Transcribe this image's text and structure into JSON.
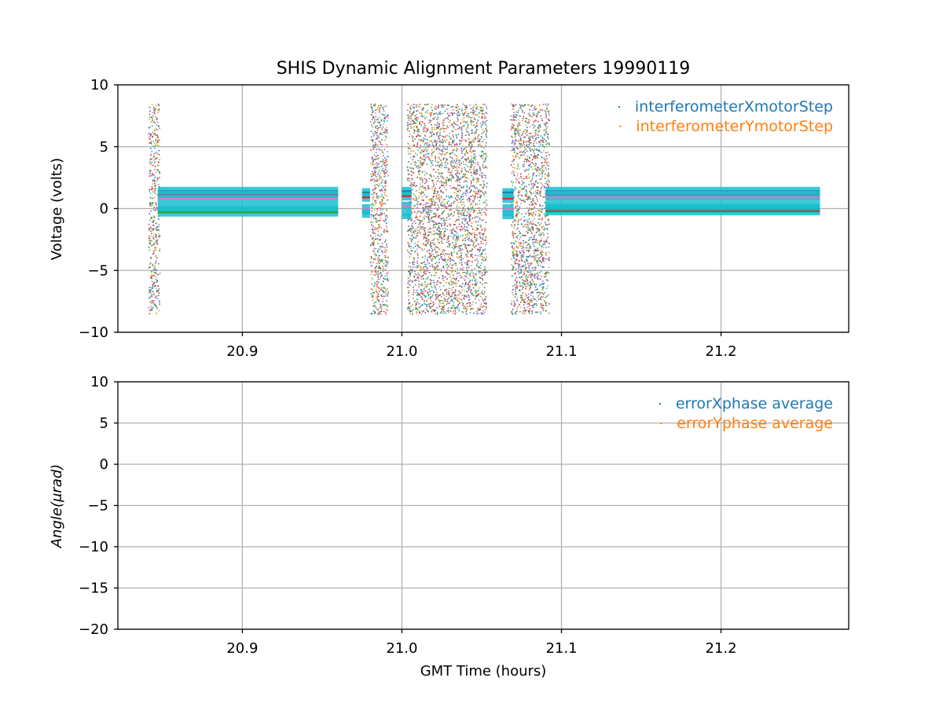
{
  "figure": {
    "title": "SHIS Dynamic Alignment Parameters 19990119",
    "xlabel": "GMT Time (hours)"
  },
  "chart_data": [
    {
      "type": "scatter",
      "ylabel": "Voltage (volts)",
      "xlim": [
        20.822,
        21.28
      ],
      "ylim": [
        -10,
        10
      ],
      "xticks": [
        20.9,
        21.0,
        21.1,
        21.2
      ],
      "xtick_labels": [
        "20.9",
        "21.0",
        "21.1",
        "21.2"
      ],
      "yticks": [
        -10,
        -5,
        0,
        5,
        10
      ],
      "ytick_labels": [
        "−10",
        "−5",
        "0",
        "5",
        "10"
      ],
      "grid": true,
      "legend_position": "top-right",
      "series": [
        {
          "name": "interferometerXmotorStep",
          "color": "#1f77b4"
        },
        {
          "name": "interferometerYmotorStep",
          "color": "#ff7f0e"
        }
      ],
      "palette": [
        "#1f77b4",
        "#ff7f0e",
        "#2ca02c",
        "#d62728",
        "#9467bd",
        "#8c564b",
        "#e377c2",
        "#7f7f7f",
        "#bcbd22",
        "#17becf"
      ],
      "scatter_segments": [
        {
          "x_start": 20.841,
          "x_end": 20.848,
          "y_min": -8.5,
          "y_max": 8.5
        },
        {
          "x_start": 20.98,
          "x_end": 20.991,
          "y_min": -8.5,
          "y_max": 8.5
        },
        {
          "x_start": 21.003,
          "x_end": 21.053,
          "y_min": -8.5,
          "y_max": 8.5
        },
        {
          "x_start": 21.068,
          "x_end": 21.092,
          "y_min": -8.5,
          "y_max": 8.5
        }
      ],
      "steady_segments": [
        {
          "x_start": 20.847,
          "x_end": 20.96,
          "levels": [
            1.4,
            1.1,
            0.8,
            0.1,
            -0.3
          ]
        },
        {
          "x_start": 20.975,
          "x_end": 20.98,
          "levels": [
            1.3,
            0.9,
            0.0,
            -0.4
          ]
        },
        {
          "x_start": 21.0,
          "x_end": 21.006,
          "levels": [
            1.4,
            1.0,
            0.2,
            -0.5
          ]
        },
        {
          "x_start": 21.063,
          "x_end": 21.07,
          "levels": [
            1.3,
            0.8,
            0.0,
            -0.5
          ]
        },
        {
          "x_start": 21.09,
          "x_end": 21.262,
          "levels": [
            1.4,
            1.1,
            0.9,
            0.2,
            0.0,
            -0.2
          ]
        }
      ]
    },
    {
      "type": "scatter",
      "ylabel": "Angle(μrad)",
      "xlim": [
        20.822,
        21.28
      ],
      "ylim": [
        -20,
        10
      ],
      "xticks": [
        20.9,
        21.0,
        21.1,
        21.2
      ],
      "xtick_labels": [
        "20.9",
        "21.0",
        "21.1",
        "21.2"
      ],
      "yticks": [
        -20,
        -15,
        -10,
        -5,
        0,
        5,
        10
      ],
      "ytick_labels": [
        "−20",
        "−15",
        "−10",
        "−5",
        "0",
        "5",
        "10"
      ],
      "grid": true,
      "legend_position": "top-right",
      "series": [
        {
          "name": "errorXphase average",
          "color": "#1f77b4",
          "points": []
        },
        {
          "name": "errorYphase average",
          "color": "#ff7f0e",
          "points": []
        }
      ]
    }
  ]
}
